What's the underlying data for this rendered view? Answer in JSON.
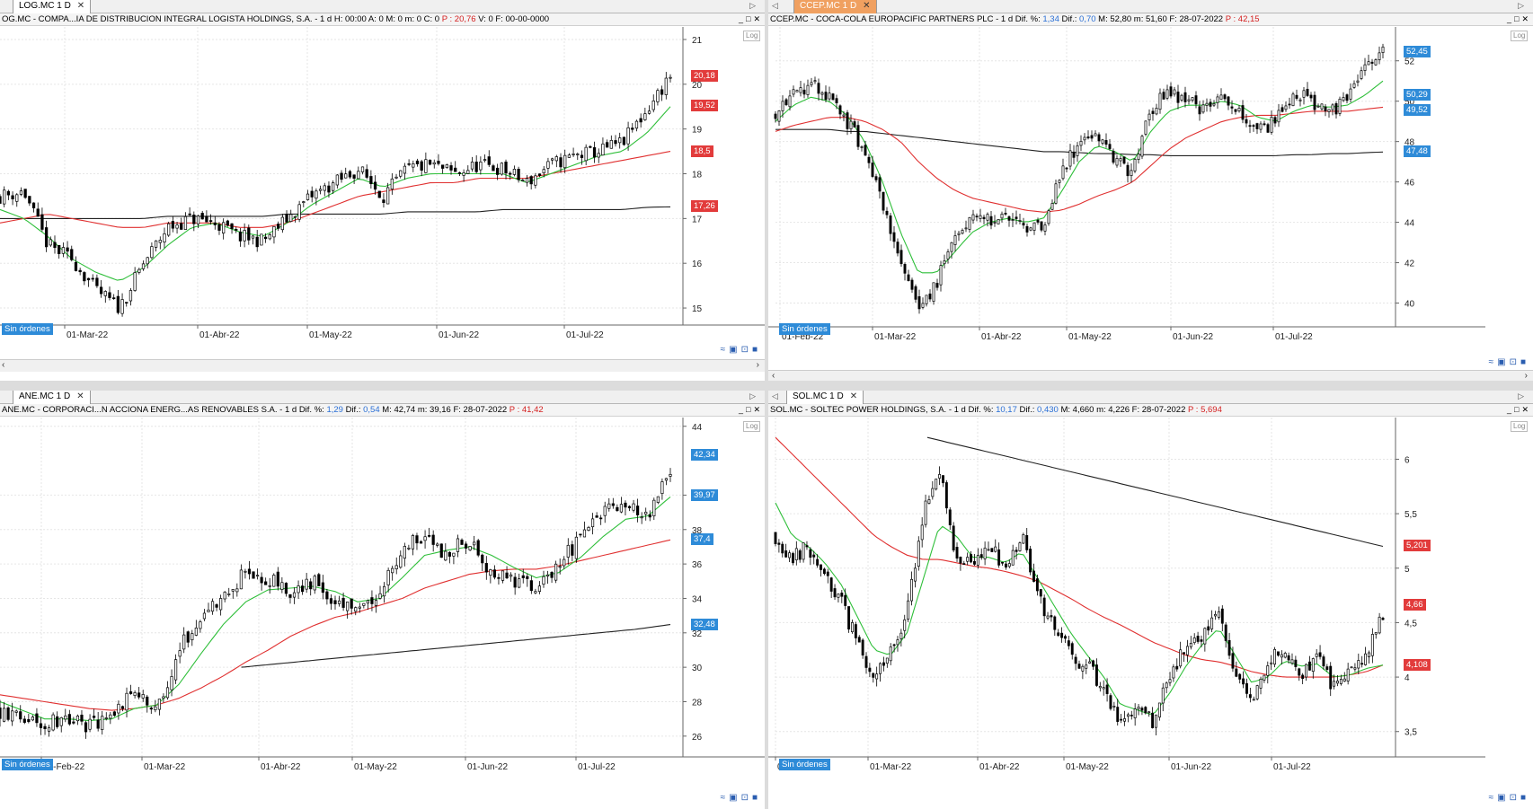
{
  "panes": [
    {
      "tab": "LOG.MC 1 D",
      "active": false,
      "info": [
        {
          "t": "OG.MC - COMPA...IA DE DISTRIBUCION INTEGRAL LOGISTA HOLDINGS, S.A. -  1 d  H: 00:00  A: 0  M: 0  m: 0  C: 0  ",
          "c": ""
        },
        {
          "t": "P : 20,76",
          "c": "red"
        },
        {
          "t": "  V: 0  F: 00-00-0000",
          "c": ""
        }
      ],
      "y_ticks": [
        "21",
        "20",
        "19",
        "18",
        "17",
        "16",
        "15"
      ],
      "x_ticks": [
        "01-Mar-22",
        "01-Abr-22",
        "01-May-22",
        "01-Jun-22",
        "01-Jul-22"
      ],
      "badges": [
        {
          "v": "20,18",
          "c": "red"
        },
        {
          "v": "19,52",
          "c": "red"
        },
        {
          "v": "18,5",
          "c": "red"
        },
        {
          "v": "17,26",
          "c": "red"
        }
      ],
      "orders": "Sin órdenes",
      "log": "Log"
    },
    {
      "tab": "CCEP.MC 1 D",
      "active": true,
      "info": [
        {
          "t": "CCEP.MC - COCA-COLA EUROPACIFIC PARTNERS PLC -  1 d  Dif. %: ",
          "c": ""
        },
        {
          "t": "1,34",
          "c": "blue"
        },
        {
          "t": "  Dif.: ",
          "c": ""
        },
        {
          "t": "0,70",
          "c": "blue"
        },
        {
          "t": "  M: 52,80  m: 51,60  F: 28-07-2022  ",
          "c": ""
        },
        {
          "t": "P : 42,15",
          "c": "red"
        }
      ],
      "y_ticks": [
        "52",
        "50",
        "48",
        "46",
        "44",
        "42",
        "40"
      ],
      "x_ticks": [
        "01-Feb-22",
        "01-Mar-22",
        "01-Abr-22",
        "01-May-22",
        "01-Jun-22",
        "01-Jul-22"
      ],
      "badges": [
        {
          "v": "52,45",
          "c": "blue"
        },
        {
          "v": "50,29",
          "c": "blue"
        },
        {
          "v": "49,52",
          "c": "blue"
        },
        {
          "v": "47,48",
          "c": "blue"
        }
      ],
      "orders": "Sin órdenes",
      "log": "Log"
    },
    {
      "tab": "ANE.MC 1 D",
      "active": false,
      "info": [
        {
          "t": "ANE.MC - CORPORACI...N ACCIONA ENERG...AS RENOVABLES S.A. -  1 d  Dif. %: ",
          "c": ""
        },
        {
          "t": "1,29",
          "c": "blue"
        },
        {
          "t": "  Dif.: ",
          "c": ""
        },
        {
          "t": "0,54",
          "c": "blue"
        },
        {
          "t": "  M: 42,74  m: 39,16  F: 28-07-2022  ",
          "c": ""
        },
        {
          "t": "P : 41,42",
          "c": "red"
        }
      ],
      "y_ticks": [
        "44",
        "40",
        "38",
        "36",
        "34",
        "32",
        "30",
        "28",
        "26"
      ],
      "x_ticks": [
        "01-Feb-22",
        "01-Mar-22",
        "01-Abr-22",
        "01-May-22",
        "01-Jun-22",
        "01-Jul-22"
      ],
      "badges": [
        {
          "v": "42,34",
          "c": "blue"
        },
        {
          "v": "39,97",
          "c": "blue"
        },
        {
          "v": "37,4",
          "c": "blue"
        },
        {
          "v": "32,48",
          "c": "blue"
        }
      ],
      "orders": "Sin órdenes",
      "log": "Log"
    },
    {
      "tab": "SOL.MC 1 D",
      "active": false,
      "info": [
        {
          "t": "SOL.MC - SOLTEC POWER HOLDINGS, S.A. -  1 d  Dif. %: ",
          "c": ""
        },
        {
          "t": "10,17",
          "c": "blue"
        },
        {
          "t": "  Dif.: ",
          "c": ""
        },
        {
          "t": "0,430",
          "c": "blue"
        },
        {
          "t": "  M: 4,660  m: 4,226  F: 28-07-2022  ",
          "c": ""
        },
        {
          "t": "P : 5,694",
          "c": "red"
        }
      ],
      "y_ticks": [
        "6",
        "5,5",
        "5",
        "4,5",
        "4",
        "3,5"
      ],
      "x_ticks": [
        "01-Feb-22",
        "01-Mar-22",
        "01-Abr-22",
        "01-May-22",
        "01-Jun-22",
        "01-Jul-22"
      ],
      "badges": [
        {
          "v": "5,201",
          "c": "red"
        },
        {
          "v": "4,66",
          "c": "red"
        },
        {
          "v": "4,108",
          "c": "red"
        }
      ],
      "orders": "Sin órdenes",
      "log": "Log"
    }
  ],
  "chart_data": [
    {
      "type": "candlestick",
      "symbol": "LOG.MC",
      "ylim": [
        14.7,
        21.2
      ],
      "seed": 11,
      "close_path": [
        17.5,
        17.6,
        16.4,
        16.1,
        15.4,
        15.0,
        16.0,
        16.8,
        17.0,
        16.9,
        16.6,
        16.5,
        17.0,
        17.5,
        17.8,
        18.1,
        17.5,
        18.1,
        18.2,
        18.0,
        18.2,
        18.1,
        17.8,
        18.2,
        18.4,
        18.5,
        18.7,
        19.4,
        20.2
      ],
      "ma_fast": [
        17.2,
        17.0,
        16.6,
        16.1,
        15.8,
        15.6,
        15.9,
        16.4,
        16.8,
        16.9,
        16.7,
        16.6,
        16.9,
        17.3,
        17.6,
        17.9,
        17.7,
        17.9,
        18.0,
        18.0,
        18.0,
        18.0,
        17.8,
        18.0,
        18.2,
        18.4,
        18.5,
        18.9,
        19.5
      ],
      "ma_mid": [
        16.9,
        17.0,
        17.1,
        17.0,
        16.9,
        16.8,
        16.8,
        16.9,
        16.9,
        16.9,
        16.8,
        16.8,
        16.9,
        17.1,
        17.3,
        17.5,
        17.6,
        17.7,
        17.8,
        17.8,
        17.9,
        17.9,
        17.9,
        18.0,
        18.1,
        18.2,
        18.3,
        18.4,
        18.5
      ],
      "ma_slow": [
        17.0,
        17.0,
        17.0,
        17.0,
        17.0,
        17.0,
        17.0,
        17.05,
        17.05,
        17.05,
        17.05,
        17.05,
        17.1,
        17.1,
        17.1,
        17.1,
        17.1,
        17.15,
        17.15,
        17.15,
        17.15,
        17.2,
        17.2,
        17.2,
        17.2,
        17.2,
        17.2,
        17.25,
        17.26
      ]
    },
    {
      "type": "candlestick",
      "symbol": "CCEP.MC",
      "ylim": [
        39,
        53.5
      ],
      "seed": 23,
      "close_path": [
        49.5,
        50.5,
        50.8,
        50.2,
        49.0,
        47.5,
        45.0,
        42.0,
        39.5,
        41.0,
        43.0,
        44.5,
        44.0,
        44.3,
        43.5,
        44.0,
        46.5,
        48.0,
        48.5,
        47.0,
        46.5,
        49.5,
        50.5,
        50.0,
        49.5,
        50.5,
        49.5,
        48.5,
        49.0,
        50.5,
        50.0,
        49.5,
        50.0,
        51.5,
        52.4
      ],
      "ma_fast": [
        49.0,
        49.8,
        50.2,
        50.0,
        49.3,
        48.0,
        46.0,
        43.5,
        41.5,
        41.5,
        42.5,
        43.5,
        44.0,
        44.2,
        44.0,
        44.2,
        45.5,
        47.0,
        47.8,
        47.5,
        47.0,
        48.5,
        49.5,
        49.8,
        49.8,
        50.0,
        49.8,
        49.2,
        49.0,
        49.5,
        49.8,
        49.7,
        49.8,
        50.3,
        51.0
      ],
      "ma_mid": [
        48.5,
        48.8,
        49.0,
        49.2,
        49.2,
        49.0,
        48.6,
        48.0,
        47.0,
        46.2,
        45.6,
        45.2,
        45.0,
        44.8,
        44.6,
        44.5,
        44.6,
        44.9,
        45.3,
        45.6,
        46.0,
        46.8,
        47.6,
        48.2,
        48.6,
        49.0,
        49.2,
        49.3,
        49.3,
        49.4,
        49.5,
        49.5,
        49.5,
        49.6,
        49.7
      ],
      "ma_slow": [
        48.6,
        48.6,
        48.6,
        48.6,
        48.5,
        48.5,
        48.4,
        48.3,
        48.2,
        48.1,
        48.0,
        47.9,
        47.8,
        47.7,
        47.6,
        47.5,
        47.5,
        47.45,
        47.4,
        47.4,
        47.35,
        47.35,
        47.3,
        47.3,
        47.3,
        47.3,
        47.3,
        47.3,
        47.3,
        47.35,
        47.35,
        47.4,
        47.4,
        47.45,
        47.48
      ]
    },
    {
      "type": "candlestick",
      "symbol": "ANE.MC",
      "ylim": [
        25,
        44.3
      ],
      "seed": 37,
      "close_path": [
        27.5,
        27.0,
        26.8,
        27.2,
        26.5,
        27.0,
        28.5,
        27.5,
        31.0,
        33.0,
        34.0,
        35.5,
        35.0,
        34.5,
        35.0,
        34.0,
        33.0,
        34.5,
        37.0,
        37.5,
        36.5,
        37.5,
        35.5,
        35.0,
        34.5,
        36.0,
        37.5,
        39.0,
        39.5,
        38.5,
        41.5
      ],
      "ma_fast": [
        28.0,
        27.5,
        27.0,
        27.0,
        26.9,
        27.0,
        27.6,
        27.8,
        29.0,
        30.8,
        32.5,
        33.8,
        34.5,
        34.6,
        34.7,
        34.4,
        33.8,
        34.0,
        35.2,
        36.5,
        36.8,
        37.0,
        36.5,
        35.8,
        35.2,
        35.5,
        36.4,
        37.6,
        38.6,
        38.8,
        39.9
      ],
      "ma_mid": [
        28.4,
        28.2,
        28.0,
        27.8,
        27.6,
        27.5,
        27.6,
        27.8,
        28.2,
        28.8,
        29.5,
        30.3,
        31.0,
        31.8,
        32.4,
        32.9,
        33.2,
        33.6,
        34.0,
        34.6,
        35.0,
        35.4,
        35.6,
        35.7,
        35.7,
        35.9,
        36.2,
        36.5,
        36.8,
        37.1,
        37.4
      ],
      "ma_slow_start": 0.36,
      "ma_slow": [
        30.0,
        30.2,
        30.4,
        30.6,
        30.8,
        31.0,
        31.2,
        31.4,
        31.6,
        31.8,
        32.0,
        32.2,
        32.48
      ]
    },
    {
      "type": "candlestick",
      "symbol": "SOL.MC",
      "ylim": [
        3.3,
        6.35
      ],
      "seed": 53,
      "close_path": [
        5.3,
        5.1,
        5.2,
        4.9,
        4.7,
        4.3,
        4.0,
        4.2,
        4.6,
        5.5,
        5.9,
        5.1,
        5.0,
        5.2,
        5.0,
        5.3,
        4.7,
        4.5,
        4.2,
        4.1,
        3.9,
        3.6,
        3.7,
        3.6,
        4.0,
        4.3,
        4.4,
        4.6,
        4.0,
        3.8,
        4.1,
        4.3,
        4.0,
        4.2,
        3.9,
        4.1,
        4.2,
        4.6
      ],
      "ma_fast": [
        5.6,
        5.3,
        5.2,
        5.05,
        4.85,
        4.55,
        4.25,
        4.2,
        4.4,
        4.9,
        5.4,
        5.3,
        5.1,
        5.1,
        5.05,
        5.15,
        4.9,
        4.65,
        4.4,
        4.2,
        4.0,
        3.75,
        3.7,
        3.65,
        3.85,
        4.1,
        4.3,
        4.45,
        4.2,
        3.95,
        4.0,
        4.15,
        4.1,
        4.12,
        4.0,
        4.02,
        4.08,
        4.11
      ],
      "ma_mid": [
        6.2,
        6.05,
        5.9,
        5.75,
        5.6,
        5.45,
        5.3,
        5.2,
        5.12,
        5.08,
        5.08,
        5.05,
        5.02,
        5.0,
        4.97,
        4.93,
        4.88,
        4.8,
        4.72,
        4.63,
        4.55,
        4.48,
        4.4,
        4.32,
        4.26,
        4.2,
        4.16,
        4.14,
        4.1,
        4.05,
        4.02,
        4.0,
        4.0,
        4.0,
        4.0,
        4.02,
        4.05,
        4.11
      ],
      "ma_slow_start": 0.25,
      "ma_slow": [
        6.2,
        6.1,
        6.0,
        5.9,
        5.8,
        5.7,
        5.6,
        5.5,
        5.4,
        5.3,
        5.2
      ]
    }
  ]
}
